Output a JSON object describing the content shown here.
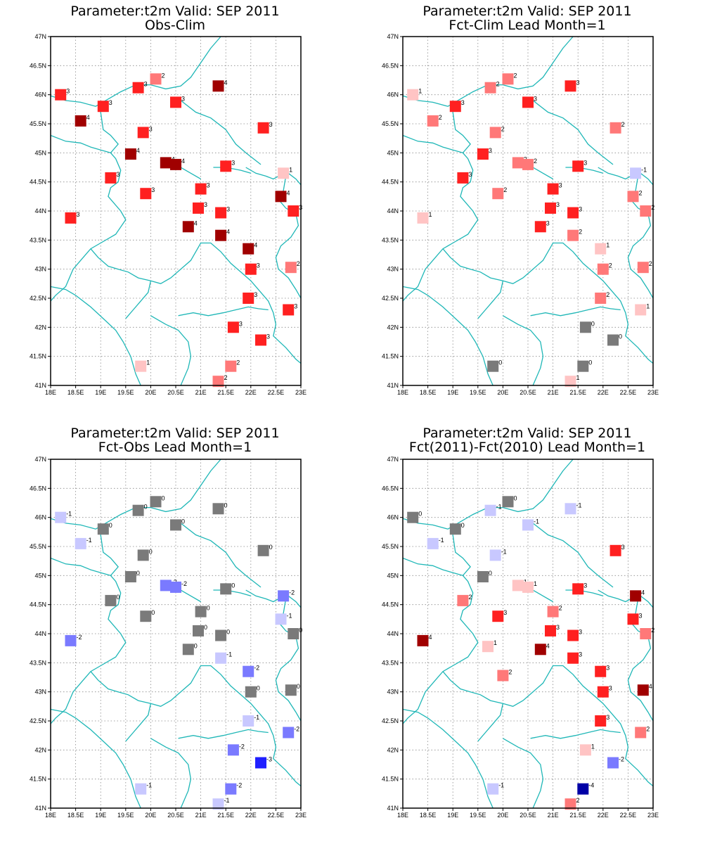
{
  "lon_labels": [
    "18E",
    "18.5E",
    "19E",
    "19.5E",
    "20E",
    "20.5E",
    "21E",
    "21.5E",
    "22E",
    "22.5E",
    "23E"
  ],
  "lat_labels": [
    "41N",
    "41.5N",
    "42N",
    "42.5N",
    "43N",
    "43.5N",
    "44N",
    "44.5N",
    "45N",
    "45.5N",
    "46N",
    "46.5N",
    "47N"
  ],
  "color_scale": {
    "-4": "#0000a6",
    "-3": "#1f1fff",
    "-2": "#7a7aff",
    "-1": "#c8c8ff",
    "0": "#7a7a7a",
    "1": "#ffc4c4",
    "2": "#ff7878",
    "3": "#ff2020",
    "4": "#a00000"
  },
  "chart_data": [
    {
      "type": "map",
      "title": "Parameter:t2m Valid: SEP 2011",
      "subtitle": "Obs-Clim",
      "lon_range": [
        18,
        23
      ],
      "lat_range": [
        41,
        47
      ],
      "stations": [
        {
          "lon": 18.2,
          "lat": 46.0,
          "v": 3
        },
        {
          "lon": 18.6,
          "lat": 45.55,
          "v": 4
        },
        {
          "lon": 19.05,
          "lat": 45.8,
          "v": 3
        },
        {
          "lon": 19.75,
          "lat": 46.12,
          "v": 3
        },
        {
          "lon": 20.1,
          "lat": 46.27,
          "v": 2
        },
        {
          "lon": 20.5,
          "lat": 45.87,
          "v": 3
        },
        {
          "lon": 21.35,
          "lat": 46.15,
          "v": 4
        },
        {
          "lon": 19.85,
          "lat": 45.35,
          "v": 3
        },
        {
          "lon": 22.25,
          "lat": 45.43,
          "v": 3
        },
        {
          "lon": 19.6,
          "lat": 44.98,
          "v": 4
        },
        {
          "lon": 20.3,
          "lat": 44.83,
          "v": 4
        },
        {
          "lon": 20.5,
          "lat": 44.8,
          "v": 4
        },
        {
          "lon": 21.5,
          "lat": 44.77,
          "v": 3
        },
        {
          "lon": 22.65,
          "lat": 44.65,
          "v": 1
        },
        {
          "lon": 19.2,
          "lat": 44.57,
          "v": 3
        },
        {
          "lon": 21.0,
          "lat": 44.38,
          "v": 3
        },
        {
          "lon": 19.9,
          "lat": 44.3,
          "v": 3
        },
        {
          "lon": 22.6,
          "lat": 44.25,
          "v": 4
        },
        {
          "lon": 20.95,
          "lat": 44.05,
          "v": 3
        },
        {
          "lon": 21.4,
          "lat": 43.97,
          "v": 3
        },
        {
          "lon": 22.85,
          "lat": 44.0,
          "v": 3
        },
        {
          "lon": 18.4,
          "lat": 43.88,
          "v": 3
        },
        {
          "lon": 20.75,
          "lat": 43.73,
          "v": 4
        },
        {
          "lon": 21.4,
          "lat": 43.58,
          "v": 4
        },
        {
          "lon": 21.95,
          "lat": 43.35,
          "v": 4
        },
        {
          "lon": 22.0,
          "lat": 43.0,
          "v": 3
        },
        {
          "lon": 22.8,
          "lat": 43.03,
          "v": 2
        },
        {
          "lon": 21.95,
          "lat": 42.5,
          "v": 3
        },
        {
          "lon": 22.75,
          "lat": 42.3,
          "v": 3
        },
        {
          "lon": 21.65,
          "lat": 42.0,
          "v": 3
        },
        {
          "lon": 22.2,
          "lat": 41.78,
          "v": 3
        },
        {
          "lon": 19.8,
          "lat": 41.33,
          "v": 1
        },
        {
          "lon": 21.6,
          "lat": 41.33,
          "v": 2
        },
        {
          "lon": 21.35,
          "lat": 41.07,
          "v": 2
        }
      ]
    },
    {
      "type": "map",
      "title": "Parameter:t2m Valid: SEP 2011",
      "subtitle": "Fct-Clim Lead Month=1",
      "lon_range": [
        18,
        23
      ],
      "lat_range": [
        41,
        47
      ],
      "stations": [
        {
          "lon": 18.2,
          "lat": 46.0,
          "v": 1
        },
        {
          "lon": 18.6,
          "lat": 45.55,
          "v": 2
        },
        {
          "lon": 19.05,
          "lat": 45.8,
          "v": 3
        },
        {
          "lon": 19.75,
          "lat": 46.12,
          "v": 2
        },
        {
          "lon": 20.1,
          "lat": 46.27,
          "v": 2
        },
        {
          "lon": 20.5,
          "lat": 45.87,
          "v": 3
        },
        {
          "lon": 21.35,
          "lat": 46.15,
          "v": 3
        },
        {
          "lon": 19.85,
          "lat": 45.35,
          "v": 2
        },
        {
          "lon": 22.25,
          "lat": 45.43,
          "v": 2
        },
        {
          "lon": 19.6,
          "lat": 44.98,
          "v": 3
        },
        {
          "lon": 20.3,
          "lat": 44.83,
          "v": 2
        },
        {
          "lon": 20.5,
          "lat": 44.8,
          "v": 2
        },
        {
          "lon": 21.5,
          "lat": 44.77,
          "v": 3
        },
        {
          "lon": 22.65,
          "lat": 44.65,
          "v": -1
        },
        {
          "lon": 19.2,
          "lat": 44.57,
          "v": 3
        },
        {
          "lon": 21.0,
          "lat": 44.38,
          "v": 3
        },
        {
          "lon": 19.9,
          "lat": 44.3,
          "v": 2
        },
        {
          "lon": 22.6,
          "lat": 44.25,
          "v": 2
        },
        {
          "lon": 20.95,
          "lat": 44.05,
          "v": 3
        },
        {
          "lon": 21.4,
          "lat": 43.97,
          "v": 3
        },
        {
          "lon": 22.85,
          "lat": 44.0,
          "v": 2
        },
        {
          "lon": 18.4,
          "lat": 43.88,
          "v": 1
        },
        {
          "lon": 20.75,
          "lat": 43.73,
          "v": 3
        },
        {
          "lon": 21.4,
          "lat": 43.58,
          "v": 2
        },
        {
          "lon": 21.95,
          "lat": 43.35,
          "v": 1
        },
        {
          "lon": 22.0,
          "lat": 43.0,
          "v": 2
        },
        {
          "lon": 22.8,
          "lat": 43.03,
          "v": 2
        },
        {
          "lon": 21.95,
          "lat": 42.5,
          "v": 2
        },
        {
          "lon": 22.75,
          "lat": 42.3,
          "v": 1
        },
        {
          "lon": 21.65,
          "lat": 42.0,
          "v": 0
        },
        {
          "lon": 22.2,
          "lat": 41.78,
          "v": 0
        },
        {
          "lon": 19.8,
          "lat": 41.33,
          "v": 0
        },
        {
          "lon": 21.6,
          "lat": 41.33,
          "v": 0
        },
        {
          "lon": 21.35,
          "lat": 41.07,
          "v": 1
        }
      ]
    },
    {
      "type": "map",
      "title": "Parameter:t2m Valid: SEP 2011",
      "subtitle": "Fct-Obs Lead Month=1",
      "lon_range": [
        18,
        23
      ],
      "lat_range": [
        41,
        47
      ],
      "stations": [
        {
          "lon": 18.2,
          "lat": 46.0,
          "v": -1
        },
        {
          "lon": 18.6,
          "lat": 45.55,
          "v": -1
        },
        {
          "lon": 19.05,
          "lat": 45.8,
          "v": 0
        },
        {
          "lon": 19.75,
          "lat": 46.12,
          "v": 0
        },
        {
          "lon": 20.1,
          "lat": 46.27,
          "v": 0
        },
        {
          "lon": 20.5,
          "lat": 45.87,
          "v": 0
        },
        {
          "lon": 21.35,
          "lat": 46.15,
          "v": 0
        },
        {
          "lon": 19.85,
          "lat": 45.35,
          "v": 0
        },
        {
          "lon": 22.25,
          "lat": 45.43,
          "v": 0
        },
        {
          "lon": 19.6,
          "lat": 44.98,
          "v": 0
        },
        {
          "lon": 20.3,
          "lat": 44.83,
          "v": -2
        },
        {
          "lon": 20.5,
          "lat": 44.8,
          "v": -2
        },
        {
          "lon": 21.5,
          "lat": 44.77,
          "v": 0
        },
        {
          "lon": 22.65,
          "lat": 44.65,
          "v": -2
        },
        {
          "lon": 19.2,
          "lat": 44.57,
          "v": 0
        },
        {
          "lon": 21.0,
          "lat": 44.38,
          "v": 0
        },
        {
          "lon": 19.9,
          "lat": 44.3,
          "v": 0
        },
        {
          "lon": 22.6,
          "lat": 44.25,
          "v": -1
        },
        {
          "lon": 20.95,
          "lat": 44.05,
          "v": 0
        },
        {
          "lon": 21.4,
          "lat": 43.97,
          "v": 0
        },
        {
          "lon": 22.85,
          "lat": 44.0,
          "v": 0
        },
        {
          "lon": 18.4,
          "lat": 43.88,
          "v": -2
        },
        {
          "lon": 20.75,
          "lat": 43.73,
          "v": 0
        },
        {
          "lon": 21.4,
          "lat": 43.58,
          "v": -1
        },
        {
          "lon": 21.95,
          "lat": 43.35,
          "v": -2
        },
        {
          "lon": 22.0,
          "lat": 43.0,
          "v": 0
        },
        {
          "lon": 22.8,
          "lat": 43.03,
          "v": 0
        },
        {
          "lon": 21.95,
          "lat": 42.5,
          "v": -1
        },
        {
          "lon": 22.75,
          "lat": 42.3,
          "v": -2
        },
        {
          "lon": 21.65,
          "lat": 42.0,
          "v": -2
        },
        {
          "lon": 22.2,
          "lat": 41.78,
          "v": -3
        },
        {
          "lon": 19.8,
          "lat": 41.33,
          "v": -1
        },
        {
          "lon": 21.6,
          "lat": 41.33,
          "v": -2
        },
        {
          "lon": 21.35,
          "lat": 41.07,
          "v": -1
        }
      ]
    },
    {
      "type": "map",
      "title": "Parameter:t2m Valid: SEP 2011",
      "subtitle": "Fct(2011)-Fct(2010) Lead Month=1",
      "lon_range": [
        18,
        23
      ],
      "lat_range": [
        41,
        47
      ],
      "stations": [
        {
          "lon": 18.2,
          "lat": 46.0,
          "v": 0
        },
        {
          "lon": 18.6,
          "lat": 45.55,
          "v": -1
        },
        {
          "lon": 19.05,
          "lat": 45.8,
          "v": 0
        },
        {
          "lon": 19.75,
          "lat": 46.12,
          "v": -1
        },
        {
          "lon": 20.1,
          "lat": 46.27,
          "v": 0
        },
        {
          "lon": 20.5,
          "lat": 45.87,
          "v": -1
        },
        {
          "lon": 21.35,
          "lat": 46.15,
          "v": -1
        },
        {
          "lon": 19.85,
          "lat": 45.35,
          "v": -1
        },
        {
          "lon": 22.25,
          "lat": 45.43,
          "v": 3
        },
        {
          "lon": 19.6,
          "lat": 44.98,
          "v": 0
        },
        {
          "lon": 20.3,
          "lat": 44.83,
          "v": 1
        },
        {
          "lon": 20.5,
          "lat": 44.8,
          "v": 1
        },
        {
          "lon": 21.5,
          "lat": 44.77,
          "v": 3
        },
        {
          "lon": 22.65,
          "lat": 44.65,
          "v": 4
        },
        {
          "lon": 19.2,
          "lat": 44.57,
          "v": 2
        },
        {
          "lon": 21.0,
          "lat": 44.38,
          "v": 2
        },
        {
          "lon": 19.9,
          "lat": 44.3,
          "v": 3
        },
        {
          "lon": 22.6,
          "lat": 44.25,
          "v": 3
        },
        {
          "lon": 20.95,
          "lat": 44.05,
          "v": 3
        },
        {
          "lon": 21.4,
          "lat": 43.97,
          "v": 3
        },
        {
          "lon": 22.85,
          "lat": 44.0,
          "v": 2
        },
        {
          "lon": 18.4,
          "lat": 43.88,
          "v": 4
        },
        {
          "lon": 19.7,
          "lat": 43.78,
          "v": 1
        },
        {
          "lon": 20.75,
          "lat": 43.73,
          "v": 4
        },
        {
          "lon": 21.4,
          "lat": 43.58,
          "v": 3
        },
        {
          "lon": 21.95,
          "lat": 43.35,
          "v": 3
        },
        {
          "lon": 20.0,
          "lat": 43.28,
          "v": 2
        },
        {
          "lon": 22.0,
          "lat": 43.0,
          "v": 3
        },
        {
          "lon": 22.8,
          "lat": 43.03,
          "v": 4
        },
        {
          "lon": 21.95,
          "lat": 42.5,
          "v": 3
        },
        {
          "lon": 22.75,
          "lat": 42.3,
          "v": 2
        },
        {
          "lon": 21.65,
          "lat": 42.0,
          "v": 1
        },
        {
          "lon": 22.2,
          "lat": 41.78,
          "v": -2
        },
        {
          "lon": 19.8,
          "lat": 41.33,
          "v": -1
        },
        {
          "lon": 21.6,
          "lat": 41.33,
          "v": -4
        },
        {
          "lon": 21.35,
          "lat": 41.07,
          "v": 2
        }
      ]
    }
  ]
}
